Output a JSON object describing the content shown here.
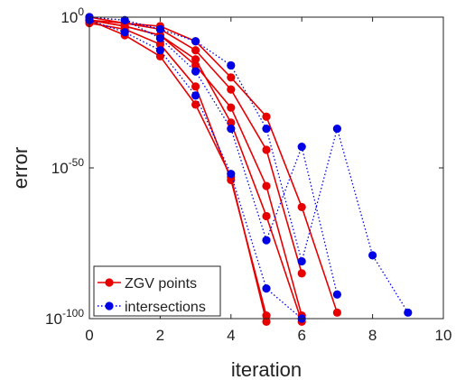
{
  "chart_data": {
    "type": "line",
    "title": "",
    "xlabel": "iteration",
    "ylabel": "error",
    "xlim": [
      0,
      10
    ],
    "ylim_log10": [
      -100,
      0
    ],
    "yscale": "log",
    "grid": false,
    "legend_position": "bottom-left",
    "xticks": [
      "0",
      "2",
      "4",
      "6",
      "8",
      "10"
    ],
    "yticks": [
      {
        "base": "10",
        "exp": "0",
        "log10": 0
      },
      {
        "base": "10",
        "exp": "-50",
        "log10": -50
      },
      {
        "base": "10",
        "exp": "-100",
        "log10": -100
      }
    ],
    "legend": [
      {
        "label": "ZGV points",
        "color": "#e60000",
        "style": "solid"
      },
      {
        "label": "intersections",
        "color": "#0000e6",
        "style": "dotted"
      }
    ],
    "groups": [
      {
        "name": "ZGV points",
        "color": "#e60000",
        "style": "solid",
        "series": [
          {
            "x": [
              0,
              1,
              2,
              3,
              4,
              5
            ],
            "log10_y": [
              -1,
              -6,
              -13,
              -29,
              -53,
              -101
            ]
          },
          {
            "x": [
              0,
              1,
              2,
              3,
              4,
              5
            ],
            "log10_y": [
              -2,
              -4,
              -9,
              -23,
              -54,
              -99
            ]
          },
          {
            "x": [
              0,
              1,
              2,
              3,
              4,
              5,
              6
            ],
            "log10_y": [
              -1,
              -3,
              -6,
              -14,
              -35,
              -66,
              -101
            ]
          },
          {
            "x": [
              0,
              1,
              2,
              3,
              4,
              5,
              6
            ],
            "log10_y": [
              -1,
              -3,
              -6,
              -16,
              -30,
              -56,
              -99
            ]
          },
          {
            "x": [
              0,
              1,
              2,
              3,
              4,
              5,
              6
            ],
            "log10_y": [
              -1,
              -2,
              -4,
              -11,
              -24,
              -44,
              -85
            ]
          },
          {
            "x": [
              0,
              1,
              2,
              3,
              4,
              5,
              6,
              7
            ],
            "log10_y": [
              0,
              -2,
              -3,
              -8,
              -20,
              -33,
              -63,
              -98
            ]
          }
        ]
      },
      {
        "name": "intersections",
        "color": "#0000e6",
        "style": "dotted",
        "series": [
          {
            "x": [
              0,
              1,
              2,
              3,
              4,
              5,
              6,
              7,
              8,
              9
            ],
            "log10_y": [
              0,
              -1,
              -4,
              -8,
              -16,
              -37,
              -81,
              -37,
              -79,
              -98
            ]
          },
          {
            "x": [
              0,
              1,
              2,
              3,
              4,
              5,
              6,
              7
            ],
            "log10_y": [
              0,
              -1,
              -7,
              -18,
              -37,
              -74,
              -43,
              -92
            ]
          },
          {
            "x": [
              0,
              1,
              2,
              3,
              4,
              5,
              6
            ],
            "log10_y": [
              -1,
              -5,
              -11,
              -26,
              -52,
              -90,
              -100
            ]
          }
        ]
      }
    ]
  }
}
